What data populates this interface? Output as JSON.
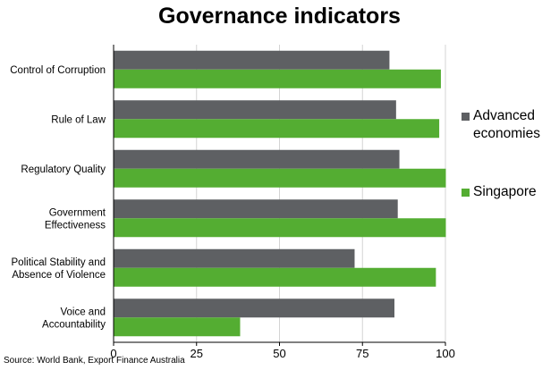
{
  "chart_data": {
    "type": "bar",
    "orientation": "horizontal",
    "title": "Governance indicators",
    "categories": [
      "Control of Corruption",
      "Rule of Law",
      "Regulatory Quality",
      "Government Effectiveness",
      "Political Stability and Absence of Violence",
      "Voice and Accountability"
    ],
    "category_lines": [
      [
        "Control of Corruption"
      ],
      [
        "Rule of Law"
      ],
      [
        "Regulatory Quality"
      ],
      [
        "Government",
        "Effectiveness"
      ],
      [
        "Political Stability and",
        "Absence of Violence"
      ],
      [
        "Voice and",
        "Accountability"
      ]
    ],
    "series": [
      {
        "name": "Advanced economies",
        "color": "#5e6063",
        "values": [
          83,
          85,
          86,
          85.5,
          72.5,
          84.5
        ]
      },
      {
        "name": "Singapore",
        "color": "#54ad32",
        "values": [
          98.5,
          98,
          100,
          100,
          97,
          38
        ]
      }
    ],
    "xlim": [
      0,
      100
    ],
    "xticks": [
      "0",
      "25",
      "50",
      "75",
      "100"
    ],
    "legend_position": "right",
    "grid": "vertical"
  },
  "legend": {
    "advanced": "Advanced economies",
    "singapore": "Singapore"
  },
  "source": "Source: World Bank, Export Finance Australia"
}
